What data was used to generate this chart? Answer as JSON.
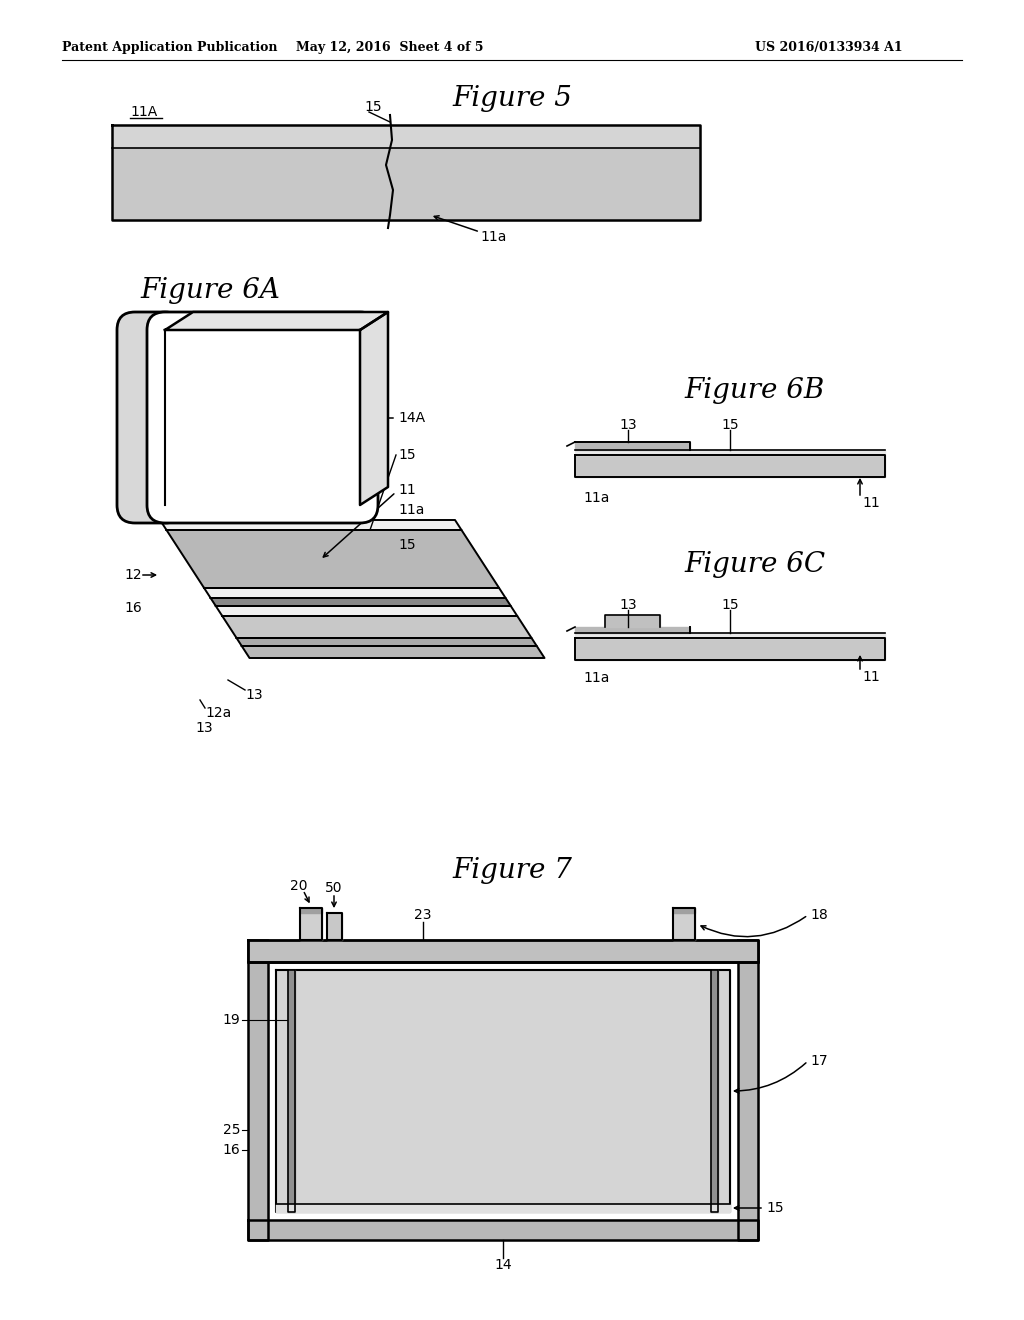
{
  "bg_color": "#ffffff",
  "header_left": "Patent Application Publication",
  "header_mid": "May 12, 2016  Sheet 4 of 5",
  "header_right": "US 2016/0133934 A1",
  "fig5_title": "Figure 5",
  "fig6a_title": "Figure 6A",
  "fig6b_title": "Figure 6B",
  "fig6c_title": "Figure 6C",
  "fig7_title": "Figure 7",
  "line_color": "#000000",
  "text_color": "#000000"
}
